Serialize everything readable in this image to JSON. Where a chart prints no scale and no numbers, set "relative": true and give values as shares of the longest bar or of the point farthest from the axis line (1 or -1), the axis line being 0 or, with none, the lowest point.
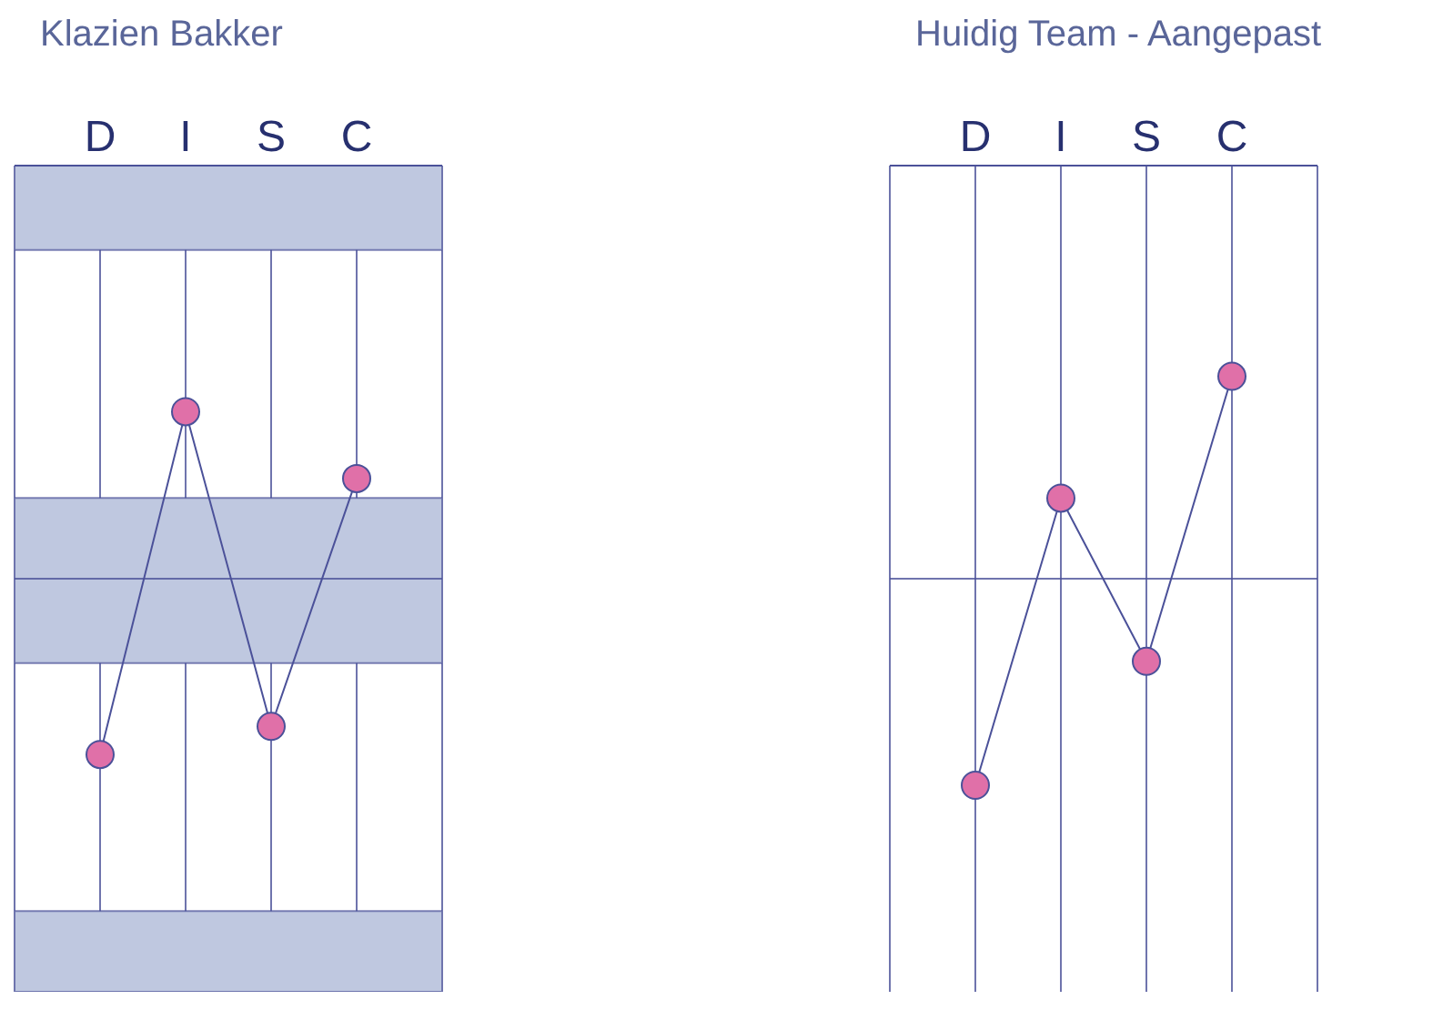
{
  "chart_data": [
    {
      "type": "line",
      "title": "Klazien Bakker",
      "categories": [
        "D",
        "I",
        "S",
        "C"
      ],
      "relative": true,
      "grid": "x",
      "marker": "circle",
      "legend": false,
      "series": [
        {
          "color": "#4b5199",
          "colors": [
            "#e070a8",
            "#e070a8",
            "#e070a8",
            "#e070a8"
          ],
          "values": [
            -1,
            0.95,
            -0.84,
            0.57
          ]
        }
      ],
      "bands": [
        {
          "axis": "y",
          "from": 1.87,
          "to": 2.35,
          "color": "#bfc8e0"
        },
        {
          "axis": "y",
          "from": -0.48,
          "to": 0.46,
          "color": "#bfc8e0"
        },
        {
          "axis": "y",
          "from": -2.35,
          "to": -1.89,
          "color": "#bfc8e0"
        }
      ]
    },
    {
      "type": "line",
      "title": "Huidig Team - Aangepast",
      "categories": [
        "D",
        "I",
        "S",
        "C"
      ],
      "relative": true,
      "grid": "x",
      "marker": "circle",
      "legend": false,
      "series": [
        {
          "color": "#4b5199",
          "colors": [
            "#e070a8",
            "#e070a8",
            "#e070a8",
            "#e070a8"
          ],
          "values": [
            -1,
            0.39,
            -0.4,
            0.98
          ]
        }
      ]
    }
  ]
}
